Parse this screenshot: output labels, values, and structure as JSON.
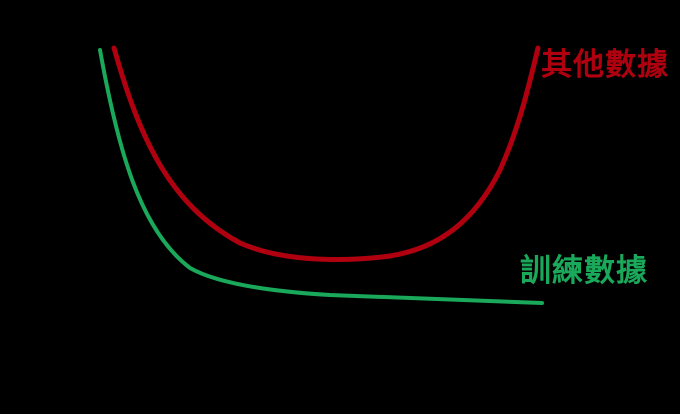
{
  "labels": {
    "other_data": "其他數據",
    "training_data": "訓練數據"
  },
  "colors": {
    "background": "#000000",
    "other_data": "#b00010",
    "training_data": "#1aa85a"
  }
}
